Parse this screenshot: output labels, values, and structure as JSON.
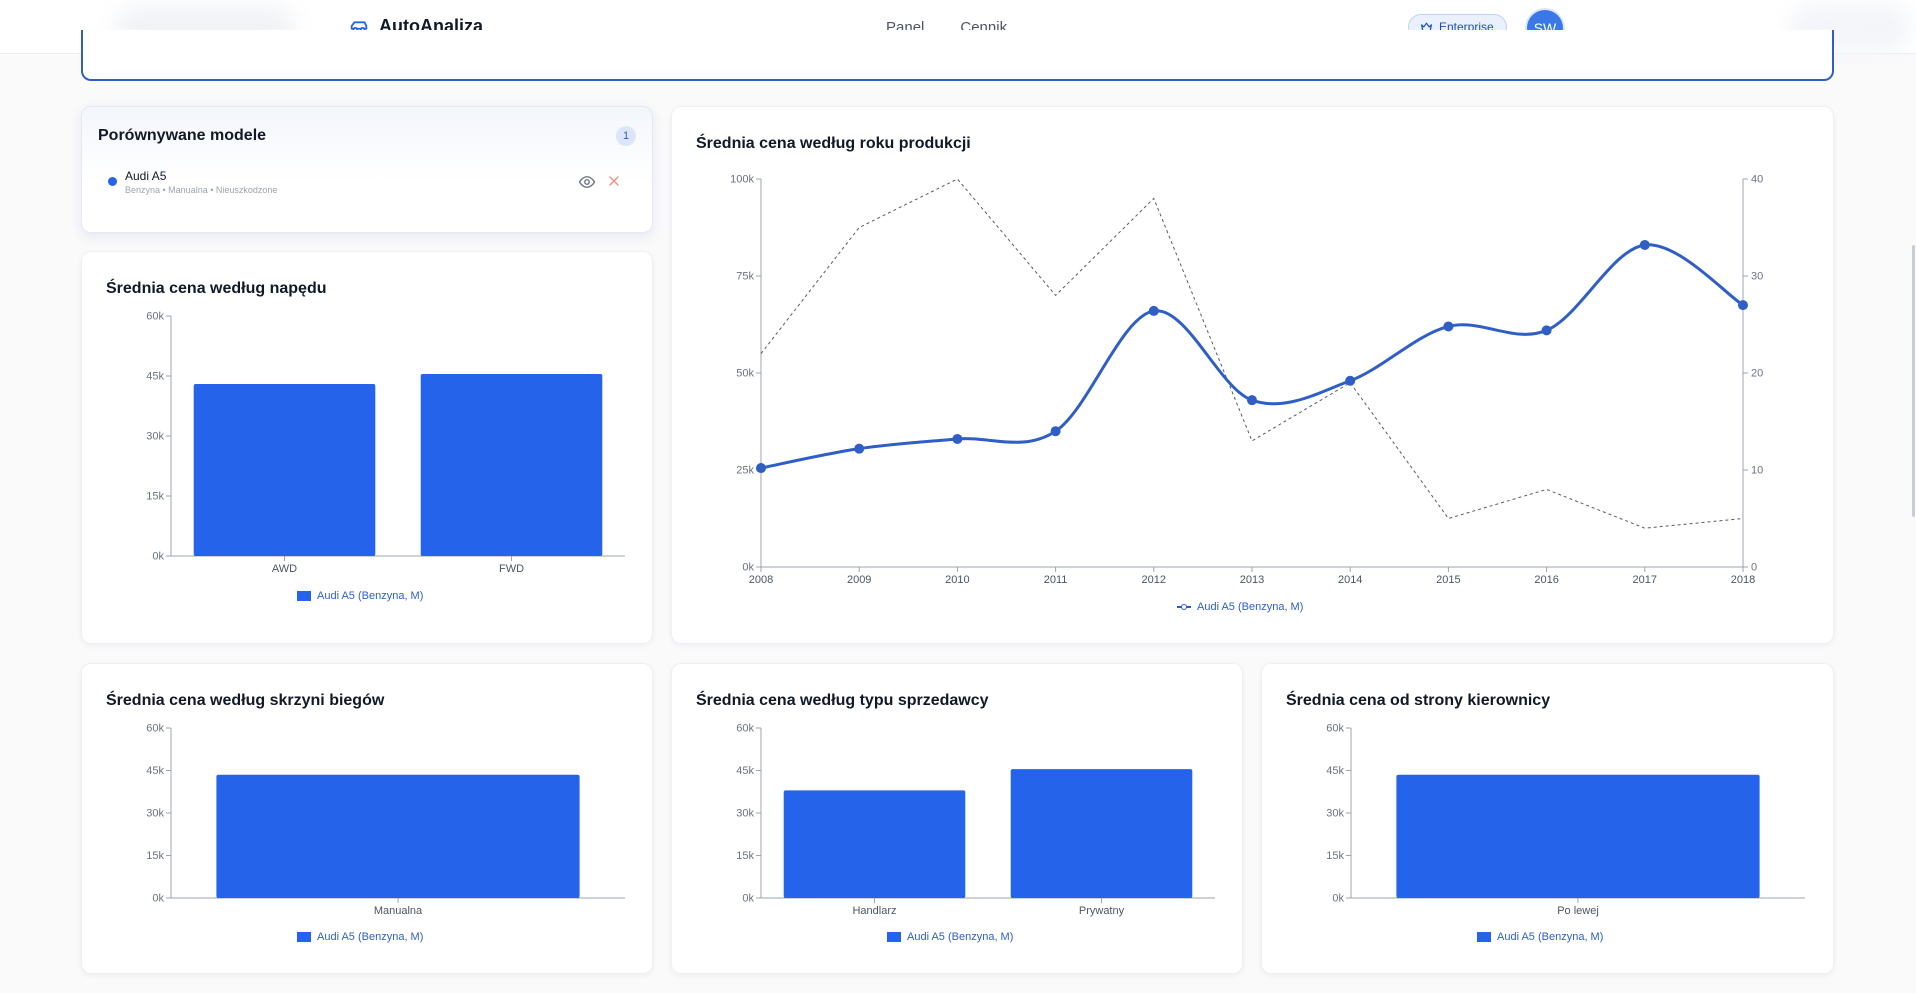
{
  "app": {
    "name": "AutoAnaliza",
    "nav": [
      "Panel",
      "Cennik"
    ],
    "plan_badge": "Enterprise",
    "avatar_initials": "SW",
    "brand_color": "#2563eb"
  },
  "models_panel": {
    "title": "Porównywane modele",
    "count": "1",
    "items": [
      {
        "name": "Audi A5",
        "details": "Benzyna • Manualna • Nieuszkodzone",
        "color": "#2563eb"
      }
    ]
  },
  "legend_label": "Audi A5 (Benzyna, M)",
  "chart_data": [
    {
      "id": "drive",
      "type": "bar",
      "title": "Średnia cena według napędu",
      "categories": [
        "AWD",
        "FWD"
      ],
      "series": [
        {
          "name": "Audi A5 (Benzyna, M)",
          "values": [
            43000,
            45500
          ],
          "color": "#2563eb"
        }
      ],
      "yticks": [
        "0k",
        "15k",
        "30k",
        "45k",
        "60k"
      ],
      "ylim": [
        0,
        60000
      ],
      "legend": "bottom"
    },
    {
      "id": "year",
      "type": "line",
      "title": "Średnia cena według roku produkcji",
      "x": [
        "2008",
        "2009",
        "2010",
        "2011",
        "2012",
        "2013",
        "2014",
        "2015",
        "2016",
        "2017",
        "2018"
      ],
      "series": [
        {
          "name": "Audi A5 (Benzyna, M)",
          "axis": "left",
          "values": [
            25500,
            30500,
            33000,
            35000,
            66000,
            43000,
            48000,
            62000,
            61000,
            83000,
            67500
          ],
          "color": "#2f5fc4"
        },
        {
          "axis": "right",
          "style": "dashed",
          "values": [
            22,
            35,
            40,
            28,
            38,
            13,
            19,
            5,
            8,
            4,
            5
          ],
          "color": "#555b66"
        }
      ],
      "yticks_left": [
        "0k",
        "25k",
        "50k",
        "75k",
        "100k"
      ],
      "ylim_left": [
        0,
        100000
      ],
      "yticks_right": [
        "0",
        "10",
        "20",
        "30",
        "40"
      ],
      "ylim_right": [
        0,
        40
      ],
      "legend": "bottom"
    },
    {
      "id": "gearbox",
      "type": "bar",
      "title": "Średnia cena według skrzyni biegów",
      "categories": [
        "Manualna"
      ],
      "series": [
        {
          "name": "Audi A5 (Benzyna, M)",
          "values": [
            43500
          ],
          "color": "#2563eb"
        }
      ],
      "yticks": [
        "0k",
        "15k",
        "30k",
        "45k",
        "60k"
      ],
      "ylim": [
        0,
        60000
      ],
      "legend": "bottom"
    },
    {
      "id": "seller",
      "type": "bar",
      "title": "Średnia cena według typu sprzedawcy",
      "categories": [
        "Handlarz",
        "Prywatny"
      ],
      "series": [
        {
          "name": "Audi A5 (Benzyna, M)",
          "values": [
            38000,
            45500
          ],
          "color": "#2563eb"
        }
      ],
      "yticks": [
        "0k",
        "15k",
        "30k",
        "45k",
        "60k"
      ],
      "ylim": [
        0,
        60000
      ],
      "legend": "bottom"
    },
    {
      "id": "steering",
      "type": "bar",
      "title": "Średnia cena od strony kierownicy",
      "categories": [
        "Po lewej"
      ],
      "series": [
        {
          "name": "Audi A5 (Benzyna, M)",
          "values": [
            43500
          ],
          "color": "#2563eb"
        }
      ],
      "yticks": [
        "0k",
        "15k",
        "30k",
        "45k",
        "60k"
      ],
      "ylim": [
        0,
        60000
      ],
      "legend": "bottom"
    }
  ]
}
